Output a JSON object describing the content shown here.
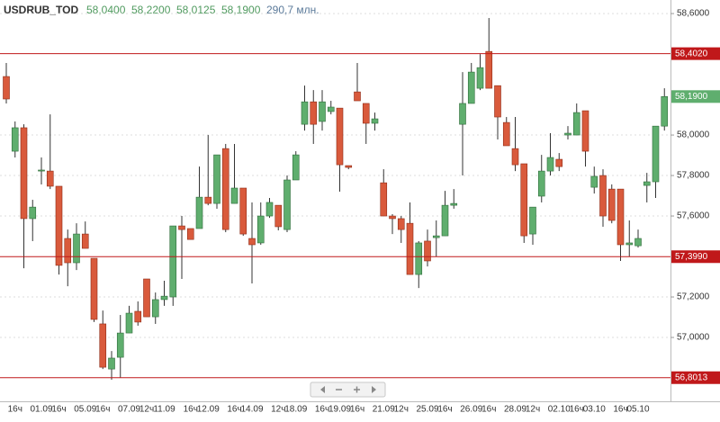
{
  "chart_data": {
    "type": "candlestick",
    "title": "USDRUB_TOD",
    "header_values": [
      "58,0400",
      "58,2200",
      "58,0125",
      "58,1900"
    ],
    "volume": "290,7 млн.",
    "categories": [
      null,
      "16ч",
      null,
      null,
      "01.09",
      null,
      "16ч",
      null,
      null,
      "05.09",
      null,
      "16ч",
      null,
      null,
      "07.09",
      null,
      "12ч",
      null,
      "11.09",
      null,
      null,
      "16ч",
      null,
      "12.09",
      null,
      null,
      "16ч",
      null,
      "14.09",
      null,
      null,
      "12ч",
      null,
      "18.09",
      null,
      null,
      "16ч",
      null,
      "19.09",
      null,
      "16ч",
      null,
      null,
      "21.09",
      null,
      "12ч",
      null,
      null,
      "25.09",
      null,
      "16ч",
      null,
      null,
      "26.09",
      null,
      "16ч",
      null,
      null,
      "28.09",
      null,
      "12ч",
      null,
      null,
      "02.10",
      null,
      "16ч",
      null,
      "03.10",
      null,
      null,
      "16ч",
      null,
      "05.10",
      null,
      null,
      null
    ],
    "open": [
      58.289,
      57.92,
      58.036,
      57.587,
      57.822,
      57.822,
      57.747,
      57.489,
      57.369,
      57.511,
      57.391,
      57.067,
      56.844,
      56.902,
      57.022,
      57.129,
      57.289,
      57.102,
      57.187,
      57.2,
      57.551,
      57.538,
      57.538,
      57.693,
      57.662,
      57.933,
      57.662,
      57.738,
      57.489,
      57.467,
      57.6,
      57.653,
      57.533,
      57.778,
      58.053,
      58.164,
      58.067,
      58.116,
      58.133,
      57.849,
      58.213,
      58.156,
      58.058,
      57.764,
      57.6,
      57.587,
      57.564,
      57.311,
      57.476,
      57.493,
      57.502,
      57.653,
      58.053,
      58.156,
      58.231,
      58.413,
      58.244,
      58.062,
      57.933,
      57.858,
      57.511,
      57.698,
      57.822,
      57.88,
      58.0,
      58.0,
      58.12,
      57.742,
      57.8,
      57.733,
      57.733,
      57.458,
      57.453,
      57.751,
      57.769,
      58.044
    ],
    "high": [
      58.356,
      58.067,
      58.053,
      57.68,
      57.889,
      58.102,
      57.747,
      57.533,
      57.564,
      57.573,
      57.391,
      57.133,
      56.933,
      57.111,
      57.156,
      57.178,
      57.289,
      57.222,
      57.28,
      57.551,
      57.6,
      57.538,
      57.844,
      58.0,
      57.902,
      57.956,
      57.956,
      57.738,
      57.667,
      57.667,
      57.689,
      57.653,
      57.8,
      57.92,
      58.244,
      58.222,
      58.222,
      58.169,
      58.133,
      57.849,
      58.356,
      58.156,
      58.111,
      57.831,
      57.609,
      57.6,
      57.667,
      57.476,
      57.533,
      57.578,
      57.724,
      57.733,
      58.311,
      58.356,
      58.4,
      58.578,
      58.244,
      58.089,
      58.089,
      57.858,
      57.644,
      57.902,
      58.009,
      57.911,
      58.044,
      58.156,
      58.12,
      57.844,
      57.831,
      57.756,
      57.733,
      57.578,
      57.533,
      57.813,
      58.044,
      58.231
    ],
    "low": [
      58.156,
      57.889,
      57.342,
      57.476,
      57.756,
      57.733,
      57.311,
      57.253,
      57.333,
      57.44,
      57.076,
      56.844,
      56.791,
      56.8,
      57.022,
      57.058,
      57.102,
      57.067,
      57.156,
      57.156,
      57.289,
      57.484,
      57.538,
      57.653,
      57.636,
      57.52,
      57.662,
      57.502,
      57.267,
      57.458,
      57.591,
      57.529,
      57.52,
      57.778,
      58.022,
      57.956,
      58.022,
      58.102,
      57.72,
      57.831,
      58.169,
      57.956,
      58.022,
      57.6,
      57.511,
      57.467,
      57.311,
      57.244,
      57.351,
      57.4,
      57.502,
      57.636,
      57.8,
      58.156,
      58.222,
      58.231,
      57.978,
      57.947,
      57.822,
      57.467,
      57.458,
      57.667,
      57.8,
      57.822,
      57.978,
      58.0,
      57.844,
      57.711,
      57.547,
      57.564,
      57.378,
      57.4,
      57.444,
      57.667,
      57.689,
      58.022
    ],
    "close": [
      58.178,
      58.036,
      57.587,
      57.644,
      57.827,
      57.747,
      57.356,
      57.369,
      57.511,
      57.44,
      57.089,
      56.853,
      56.898,
      57.022,
      57.12,
      57.076,
      57.102,
      57.187,
      57.204,
      57.551,
      57.533,
      57.484,
      57.693,
      57.662,
      57.902,
      57.533,
      57.738,
      57.511,
      57.458,
      57.6,
      57.667,
      57.547,
      57.778,
      57.902,
      58.164,
      58.053,
      58.164,
      58.138,
      57.853,
      57.84,
      58.169,
      58.058,
      58.08,
      57.6,
      57.587,
      57.533,
      57.311,
      57.467,
      57.378,
      57.502,
      57.653,
      57.662,
      58.156,
      58.311,
      58.333,
      58.231,
      58.089,
      57.947,
      57.853,
      57.502,
      57.644,
      57.822,
      57.889,
      57.844,
      58.009,
      58.111,
      57.92,
      57.796,
      57.6,
      57.578,
      57.458,
      57.467,
      57.489,
      57.769,
      58.044,
      58.19
    ],
    "up_color": "#5fae6e",
    "down_color": "#d95a3c",
    "ylim": [
      56.689,
      58.667
    ],
    "yticks": [
      {
        "value": 57.0,
        "label": "57,0000"
      },
      {
        "value": 57.2,
        "label": "57,2000"
      },
      {
        "value": 57.6,
        "label": "57,6000"
      },
      {
        "value": 57.8,
        "label": "57,8000"
      },
      {
        "value": 58.0,
        "label": "58,0000"
      },
      {
        "value": 58.6,
        "label": "58,6000"
      }
    ],
    "grid": true,
    "levels": [
      {
        "value": 58.402,
        "label": "58,4020"
      },
      {
        "value": 57.399,
        "label": "57,3990"
      },
      {
        "value": 56.8013,
        "label": "56,8013"
      }
    ],
    "level_color": "#c0181a",
    "last_price": {
      "value": 58.19,
      "label": "58,1900"
    }
  }
}
